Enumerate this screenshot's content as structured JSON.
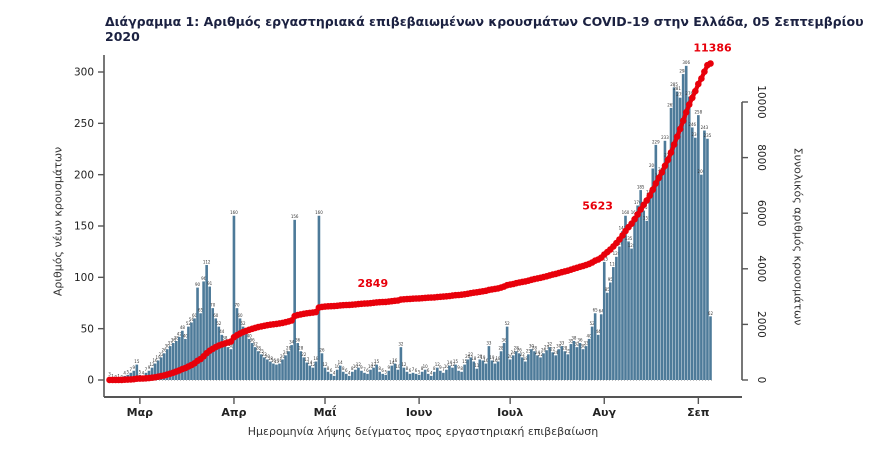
{
  "title": "Διάγραμμα 1: Αριθμός εργαστηριακά επιβεβαιωμένων κρουσμάτων COVID-19 στην Ελλάδα, 05 Σεπτεμβρίου 2020",
  "colors": {
    "bar": "#4d7a99",
    "line": "#e8000b",
    "title_text": "#1b2141",
    "axis": "#555555",
    "tick_label": "#222222",
    "bar_value_label": "#333333"
  },
  "chart_data": {
    "type": "bar",
    "title": "Διάγραμμα 1: Αριθμός εργαστηριακά επιβεβαιωμένων κρουσμάτων COVID-19 στην Ελλάδα, 05 Σεπτεμβρίου 2020",
    "x_axis": {
      "title": "Ημερομηνία λήψης δείγματος προς εργαστηριακή επιβεβαίωση",
      "months": [
        "Μαρ",
        "Απρ",
        "Μαΐ",
        "Ιουν",
        "Ιουλ",
        "Αυγ",
        "Σεπ"
      ],
      "month_start_day_index": [
        10,
        41,
        71,
        102,
        132,
        163,
        194
      ]
    },
    "left_axis": {
      "title": "Αριθμός νέων κρουσμάτων",
      "ticks": [
        0,
        50,
        100,
        150,
        200,
        250,
        300
      ],
      "range": [
        0,
        300
      ]
    },
    "right_axis": {
      "title": "Συνολικός αριθμός κρουσμάτων",
      "ticks": [
        0,
        2000,
        4000,
        6000,
        8000,
        10000
      ],
      "range": [
        0,
        10000
      ]
    },
    "legend": "none",
    "grid": false,
    "series": [
      {
        "name": "daily_new_cases",
        "type": "bar",
        "values": [
          3,
          1,
          0,
          1,
          0,
          4,
          5,
          7,
          9,
          15,
          5,
          4,
          7,
          9,
          12,
          16,
          19,
          22,
          26,
          30,
          33,
          36,
          38,
          42,
          48,
          40,
          52,
          56,
          60,
          90,
          65,
          96,
          112,
          91,
          70,
          60,
          52,
          44,
          38,
          32,
          30,
          160,
          70,
          60,
          52,
          45,
          40,
          36,
          32,
          28,
          25,
          22,
          20,
          18,
          16,
          15,
          16,
          20,
          24,
          28,
          34,
          156,
          36,
          28,
          22,
          17,
          14,
          12,
          18,
          160,
          26,
          12,
          8,
          6,
          4,
          10,
          14,
          8,
          6,
          4,
          8,
          10,
          12,
          9,
          7,
          6,
          10,
          12,
          15,
          8,
          6,
          5,
          9,
          14,
          16,
          10,
          32,
          12,
          8,
          6,
          7,
          6,
          5,
          8,
          10,
          6,
          4,
          8,
          12,
          9,
          7,
          10,
          14,
          12,
          15,
          9,
          8,
          15,
          20,
          22,
          18,
          11,
          20,
          19,
          16,
          33,
          19,
          16,
          18,
          28,
          36,
          52,
          20,
          24,
          28,
          26,
          22,
          18,
          25,
          30,
          28,
          24,
          22,
          26,
          29,
          32,
          27,
          24,
          30,
          33,
          28,
          25,
          35,
          38,
          32,
          36,
          30,
          33,
          40,
          52,
          65,
          44,
          64,
          115,
          85,
          95,
          110,
          120,
          130,
          145,
          160,
          135,
          128,
          160,
          170,
          185,
          165,
          155,
          180,
          206,
          229,
          196,
          202,
          233,
          216,
          265,
          285,
          281,
          275,
          298,
          306,
          276,
          246,
          236,
          258,
          200,
          243,
          235,
          62
        ]
      },
      {
        "name": "cumulative_cases",
        "type": "line",
        "derived_from": "cumulative sum of daily_new_cases",
        "final_value": 11386
      }
    ],
    "annotations": [
      {
        "text": "2849",
        "day_index": 94
      },
      {
        "text": "5623",
        "day_index": 172
      },
      {
        "text": "11386",
        "day_index": 198
      }
    ]
  }
}
